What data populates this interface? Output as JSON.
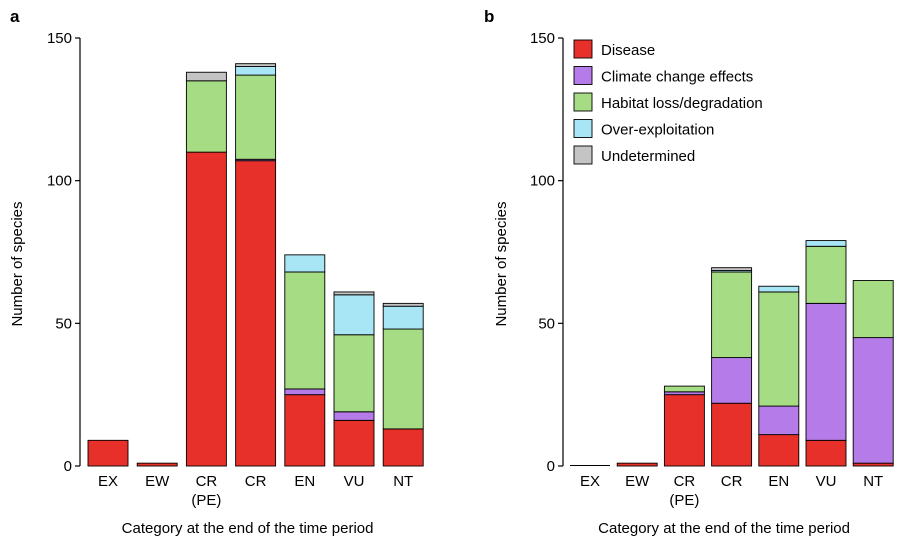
{
  "legend_colors": {
    "Disease": "#e8302a",
    "Climate change effects": "#b57be8",
    "Habitat loss/degradation": "#a6dc84",
    "Over-exploitation": "#a8e6f5",
    "Undetermined": "#c4c4c4"
  },
  "chart_data": [
    {
      "panel_label": "a",
      "type": "bar",
      "stacked": true,
      "title": "",
      "xlabel": "Category at the end of the time period",
      "ylabel": "Number of species",
      "ylim": [
        0,
        150
      ],
      "yticks": [
        0,
        50,
        100,
        150
      ],
      "categories": [
        "EX",
        "EW",
        "CR\n(PE)",
        "CR",
        "EN",
        "VU",
        "NT"
      ],
      "legend": false,
      "series": [
        {
          "name": "Disease",
          "values": [
            9,
            1,
            110,
            107,
            25,
            16,
            13
          ]
        },
        {
          "name": "Climate change effects",
          "values": [
            0,
            0,
            0,
            0.5,
            2,
            3,
            0
          ]
        },
        {
          "name": "Habitat loss/degradation",
          "values": [
            0,
            0,
            25,
            29.5,
            41,
            27,
            35
          ]
        },
        {
          "name": "Over-exploitation",
          "values": [
            0,
            0,
            0,
            3,
            6,
            14,
            8
          ]
        },
        {
          "name": "Undetermined",
          "values": [
            0,
            0,
            3,
            1,
            0,
            1,
            1
          ]
        }
      ]
    },
    {
      "panel_label": "b",
      "type": "bar",
      "stacked": true,
      "title": "",
      "xlabel": "Category at the end of the time period",
      "ylabel": "Number of species",
      "ylim": [
        0,
        150
      ],
      "yticks": [
        0,
        50,
        100,
        150
      ],
      "categories": [
        "EX",
        "EW",
        "CR\n(PE)",
        "CR",
        "EN",
        "VU",
        "NT"
      ],
      "legend": true,
      "legend_position": "top-left",
      "series": [
        {
          "name": "Disease",
          "values": [
            0,
            1,
            25,
            22,
            11,
            9,
            1
          ]
        },
        {
          "name": "Climate change effects",
          "values": [
            0,
            0,
            1,
            16,
            10,
            48,
            44
          ]
        },
        {
          "name": "Habitat loss/degradation",
          "values": [
            0,
            0,
            2,
            30,
            40,
            20,
            20
          ]
        },
        {
          "name": "Over-exploitation",
          "values": [
            0,
            0,
            0,
            0.5,
            2,
            2,
            0
          ]
        },
        {
          "name": "Undetermined",
          "values": [
            0,
            0,
            0,
            1,
            0,
            0,
            0
          ]
        }
      ]
    }
  ]
}
